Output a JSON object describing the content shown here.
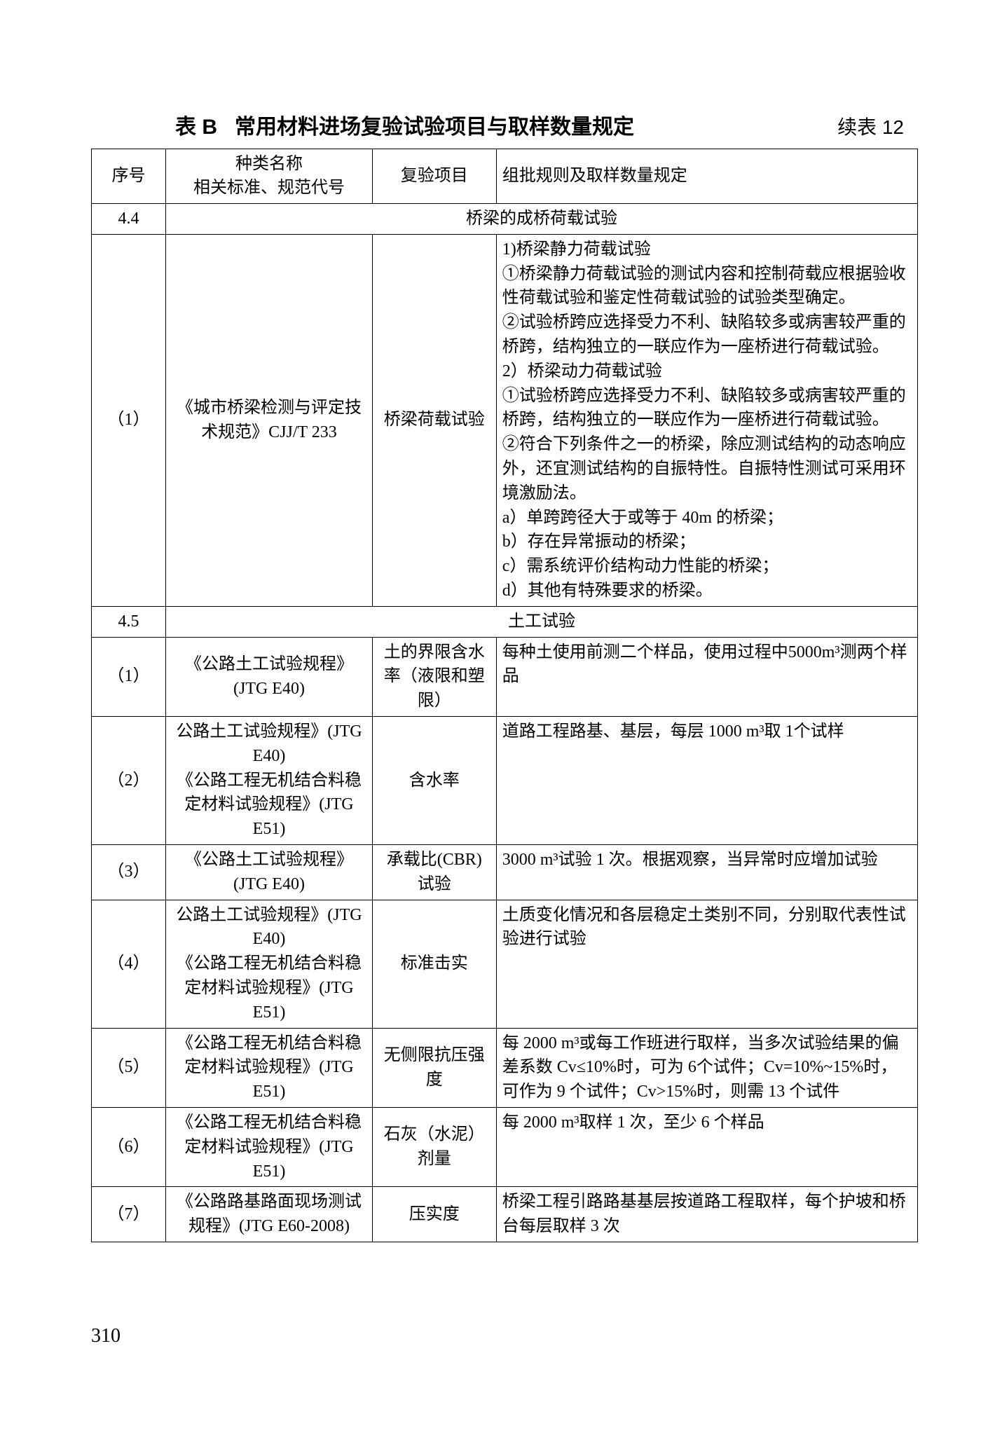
{
  "title": {
    "prefix": "表 B",
    "main": "常用材料进场复验试验项目与取样数量规定",
    "continuation": "续表 12"
  },
  "headers": {
    "seq": "序号",
    "name_line1": "种类名称",
    "name_line2": "相关标准、规范代号",
    "test": "复验项目",
    "rule": "组批规则及取样数量规定"
  },
  "sections": [
    {
      "seq": "4.4",
      "title": "桥梁的成桥荷载试验",
      "rows": [
        {
          "seq": "（1）",
          "name": "《城市桥梁检测与评定技术规范》CJJ/T 233",
          "test": "桥梁荷载试验",
          "rule": "1)桥梁静力荷载试验\n①桥梁静力荷载试验的测试内容和控制荷载应根据验收性荷载试验和鉴定性荷载试验的试验类型确定。\n②试验桥跨应选择受力不利、缺陷较多或病害较严重的桥跨，结构独立的一联应作为一座桥进行荷载试验。\n2）桥梁动力荷载试验\n①试验桥跨应选择受力不利、缺陷较多或病害较严重的桥跨，结构独立的一联应作为一座桥进行荷载试验。\n②符合下列条件之一的桥梁，除应测试结构的动态响应外，还宜测试结构的自振特性。自振特性测试可采用环境激励法。\na）单跨跨径大于或等于 40m 的桥梁；\nb）存在异常振动的桥梁；\nc）需系统评价结构动力性能的桥梁；\nd）其他有特殊要求的桥梁。"
        }
      ]
    },
    {
      "seq": "4.5",
      "title": "土工试验",
      "rows": [
        {
          "seq": "（1）",
          "name": "《公路土工试验规程》(JTG E40)",
          "test": "土的界限含水率（液限和塑限）",
          "rule": "每种土使用前测二个样品，使用过程中5000m³测两个样品"
        },
        {
          "seq": "（2）",
          "name": "公路土工试验规程》(JTG E40)\n《公路工程无机结合料稳定材料试验规程》(JTG E51)",
          "test": "含水率",
          "rule": "道路工程路基、基层，每层 1000 m³取 1个试样"
        },
        {
          "seq": "（3）",
          "name": "《公路土工试验规程》(JTG E40)",
          "test": "承载比(CBR)试验",
          "rule": "3000 m³试验 1 次。根据观察，当异常时应增加试验"
        },
        {
          "seq": "（4）",
          "name": "公路土工试验规程》(JTG E40)\n《公路工程无机结合料稳定材料试验规程》(JTG E51)",
          "test": "标准击实",
          "rule": "土质变化情况和各层稳定土类别不同，分别取代表性试验进行试验"
        },
        {
          "seq": "（5）",
          "name": "《公路工程无机结合料稳定材料试验规程》(JTG E51)",
          "test": "无侧限抗压强度",
          "rule": "每 2000 m³或每工作班进行取样，当多次试验结果的偏差系数 Cv≤10%时，可为 6个试件；Cv=10%~15%时，可作为 9 个试件；Cv>15%时，则需 13 个试件"
        },
        {
          "seq": "（6）",
          "name": "《公路工程无机结合料稳定材料试验规程》(JTG E51)",
          "test": "石灰（水泥）剂量",
          "rule": "每 2000 m³取样 1 次，至少 6 个样品"
        },
        {
          "seq": "（7）",
          "name": "《公路路基路面现场测试规程》(JTG E60-2008)",
          "test": "压实度",
          "rule": "桥梁工程引路路基基层按道路工程取样，每个护坡和桥台每层取样 3 次"
        }
      ]
    }
  ],
  "page_number": "310"
}
